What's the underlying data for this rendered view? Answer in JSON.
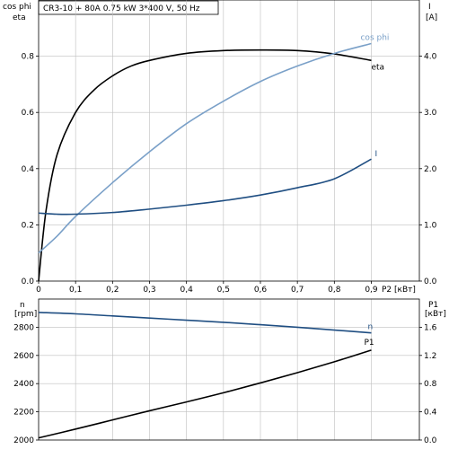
{
  "header": {
    "title": "CR3-10 + 80A   0.75 kW   3*400 V, 50 Hz"
  },
  "top_panel": {
    "left_axis_label_line1": "cos phi",
    "left_axis_label_line2": "eta",
    "right_axis_label_line1": "I",
    "right_axis_label_line2": "[A]",
    "x_axis_label": "P2 [кВт]"
  },
  "bottom_panel": {
    "left_axis_label_line1": "n",
    "left_axis_label_line2": "[rpm]",
    "right_axis_label_line1": "P1",
    "right_axis_label_line2": "[кВт]"
  },
  "colors": {
    "eta": "#000000",
    "cosphi": "#7aa0c8",
    "current": "#1f4e82",
    "speed": "#1f4e82",
    "p1": "#000000",
    "grid": "#bfbfbf"
  },
  "chart_data": [
    {
      "type": "line",
      "title": "",
      "xlabel": "P2 [кВт]",
      "ylabel": "cos phi / eta",
      "y2label": "I [A]",
      "xlim": [
        0,
        1.03
      ],
      "ylim": [
        0,
        1.0
      ],
      "y2lim": [
        0,
        5.0
      ],
      "x_ticks": [
        "0",
        "0,1",
        "0,2",
        "0,3",
        "0,4",
        "0,5",
        "0,6",
        "0,7",
        "0,8",
        "0,9"
      ],
      "x_tick_values": [
        0,
        0.1,
        0.2,
        0.3,
        0.4,
        0.5,
        0.6,
        0.7,
        0.8,
        0.9
      ],
      "y_ticks": [
        "0.0",
        "0.2",
        "0.4",
        "0.6",
        "0.8"
      ],
      "y_tick_values": [
        0,
        0.2,
        0.4,
        0.6,
        0.8
      ],
      "y2_ticks": [
        "0.0",
        "1.0",
        "2.0",
        "3.0",
        "4.0"
      ],
      "y2_tick_values": [
        0,
        1,
        2,
        3,
        4
      ],
      "grid": true,
      "series": [
        {
          "name": "eta",
          "axis": "left",
          "color_key": "eta",
          "x": [
            0,
            0.02,
            0.05,
            0.1,
            0.15,
            0.2,
            0.25,
            0.3,
            0.4,
            0.5,
            0.6,
            0.7,
            0.8,
            0.9
          ],
          "y": [
            0,
            0.25,
            0.45,
            0.6,
            0.68,
            0.73,
            0.765,
            0.785,
            0.81,
            0.82,
            0.822,
            0.82,
            0.808,
            0.785
          ]
        },
        {
          "name": "cos phi",
          "axis": "left",
          "color_key": "cosphi",
          "x": [
            0,
            0.05,
            0.1,
            0.2,
            0.3,
            0.4,
            0.5,
            0.6,
            0.7,
            0.8,
            0.9
          ],
          "y": [
            0.1,
            0.16,
            0.23,
            0.35,
            0.46,
            0.56,
            0.64,
            0.71,
            0.765,
            0.81,
            0.845
          ]
        },
        {
          "name": "I",
          "axis": "right",
          "color_key": "current",
          "x": [
            0,
            0.05,
            0.1,
            0.2,
            0.3,
            0.4,
            0.5,
            0.6,
            0.7,
            0.8,
            0.9
          ],
          "y": [
            1.21,
            1.19,
            1.19,
            1.22,
            1.28,
            1.35,
            1.43,
            1.53,
            1.66,
            1.82,
            2.17
          ]
        }
      ]
    },
    {
      "type": "line",
      "title": "",
      "xlabel": "",
      "ylabel": "n [rpm]",
      "y2label": "P1 [кВт]",
      "xlim": [
        0,
        1.03
      ],
      "ylim": [
        2000,
        3000
      ],
      "y2lim": [
        0,
        2.0
      ],
      "y_ticks": [
        "2000",
        "2200",
        "2400",
        "2600",
        "2800"
      ],
      "y_tick_values": [
        2000,
        2200,
        2400,
        2600,
        2800
      ],
      "y2_ticks": [
        "0.0",
        "0.4",
        "0.8",
        "1.2",
        "1.6"
      ],
      "y2_tick_values": [
        0,
        0.4,
        0.8,
        1.2,
        1.6
      ],
      "grid": true,
      "series": [
        {
          "name": "n",
          "axis": "left",
          "color_key": "speed",
          "x": [
            0,
            0.1,
            0.2,
            0.3,
            0.4,
            0.5,
            0.6,
            0.7,
            0.8,
            0.9
          ],
          "y": [
            2905,
            2895,
            2880,
            2865,
            2850,
            2835,
            2818,
            2800,
            2780,
            2760
          ]
        },
        {
          "name": "P1",
          "axis": "right",
          "color_key": "p1",
          "x": [
            0,
            0.1,
            0.2,
            0.3,
            0.4,
            0.5,
            0.6,
            0.7,
            0.8,
            0.9
          ],
          "y": [
            0.03,
            0.155,
            0.285,
            0.415,
            0.54,
            0.67,
            0.81,
            0.955,
            1.11,
            1.275
          ]
        }
      ]
    }
  ]
}
